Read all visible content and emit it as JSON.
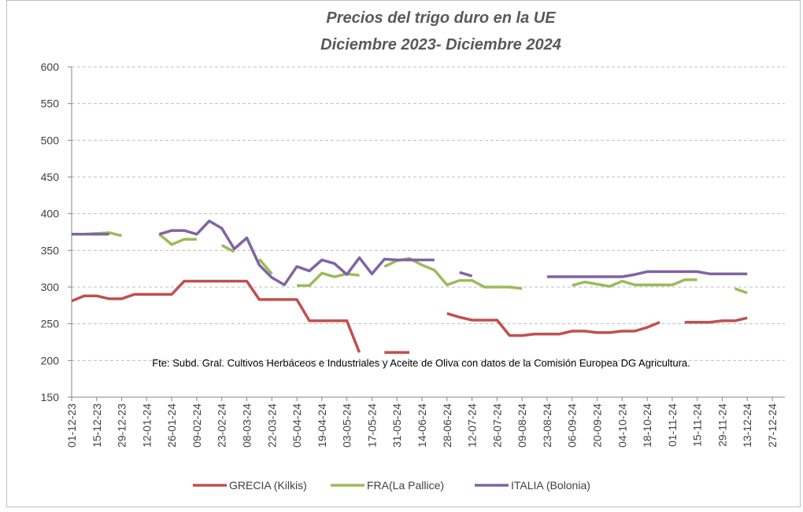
{
  "chart_data": {
    "type": "line",
    "title": "Precios del trigo duro en la UE",
    "subtitle": "Diciembre 2023- Diciembre 2024",
    "annotation": "Fte: Subd. Gral. Cultivos Herbáceos e Industriales y Aceite de Oliva con datos de la Comisión Europea DG Agricultura.",
    "categories": [
      "01-12-23",
      null,
      "15-12-23",
      null,
      "29-12-23",
      null,
      "12-01-24",
      null,
      "26-01-24",
      null,
      "09-02-24",
      null,
      "23-02-24",
      null,
      "08-03-24",
      null,
      "22-03-24",
      null,
      "05-04-24",
      null,
      "19-04-24",
      null,
      "03-05-24",
      null,
      "17-05-24",
      null,
      "31-05-24",
      null,
      "14-06-24",
      null,
      "28-06-24",
      null,
      "12-07-24",
      null,
      "26-07-24",
      null,
      "09-08-24",
      null,
      "23-08-24",
      null,
      "06-09-24",
      null,
      "20-09-24",
      null,
      "04-10-24",
      null,
      "18-10-24",
      null,
      "01-11-24",
      null,
      "15-11-24",
      null,
      "29-11-24",
      null,
      "13-12-24",
      null,
      "27-12-24"
    ],
    "series": [
      {
        "name": "GRECIA (Kilkis)",
        "color": "#c0504d",
        "values": [
          281,
          288,
          288,
          284,
          284,
          290,
          290,
          290,
          290,
          308,
          308,
          308,
          308,
          308,
          308,
          283,
          283,
          283,
          283,
          254,
          254,
          254,
          254,
          211,
          null,
          211,
          211,
          211,
          null,
          null,
          264,
          259,
          255,
          255,
          255,
          234,
          234,
          236,
          236,
          236,
          240,
          240,
          238,
          238,
          240,
          240,
          245,
          252,
          null,
          252,
          252,
          252,
          254,
          254,
          258,
          null,
          null
        ]
      },
      {
        "name": "FRA(La Pallice)",
        "color": "#9bbb59",
        "values": [
          372,
          372,
          373,
          374,
          370,
          null,
          null,
          372,
          358,
          365,
          365,
          null,
          357,
          348,
          null,
          338,
          318,
          null,
          302,
          302,
          319,
          314,
          318,
          316,
          null,
          328,
          336,
          339,
          330,
          323,
          303,
          309,
          309,
          300,
          300,
          300,
          298,
          null,
          null,
          null,
          302,
          307,
          304,
          301,
          308,
          303,
          303,
          303,
          303,
          310,
          310,
          null,
          null,
          298,
          292,
          null,
          null
        ]
      },
      {
        "name": "ITALIA (Bolonia)",
        "color": "#8064a2",
        "values": [
          372,
          372,
          372,
          372,
          null,
          null,
          null,
          372,
          377,
          377,
          372,
          390,
          380,
          352,
          367,
          330,
          313,
          303,
          328,
          322,
          337,
          332,
          317,
          340,
          318,
          338,
          337,
          337,
          337,
          337,
          null,
          320,
          315,
          null,
          null,
          null,
          null,
          null,
          314,
          314,
          314,
          314,
          314,
          314,
          314,
          317,
          321,
          321,
          321,
          321,
          321,
          318,
          318,
          318,
          318,
          null,
          null
        ]
      }
    ],
    "ylim": [
      150,
      600
    ],
    "yticks": [
      150,
      200,
      250,
      300,
      350,
      400,
      450,
      500,
      550,
      600
    ],
    "grid": true
  }
}
